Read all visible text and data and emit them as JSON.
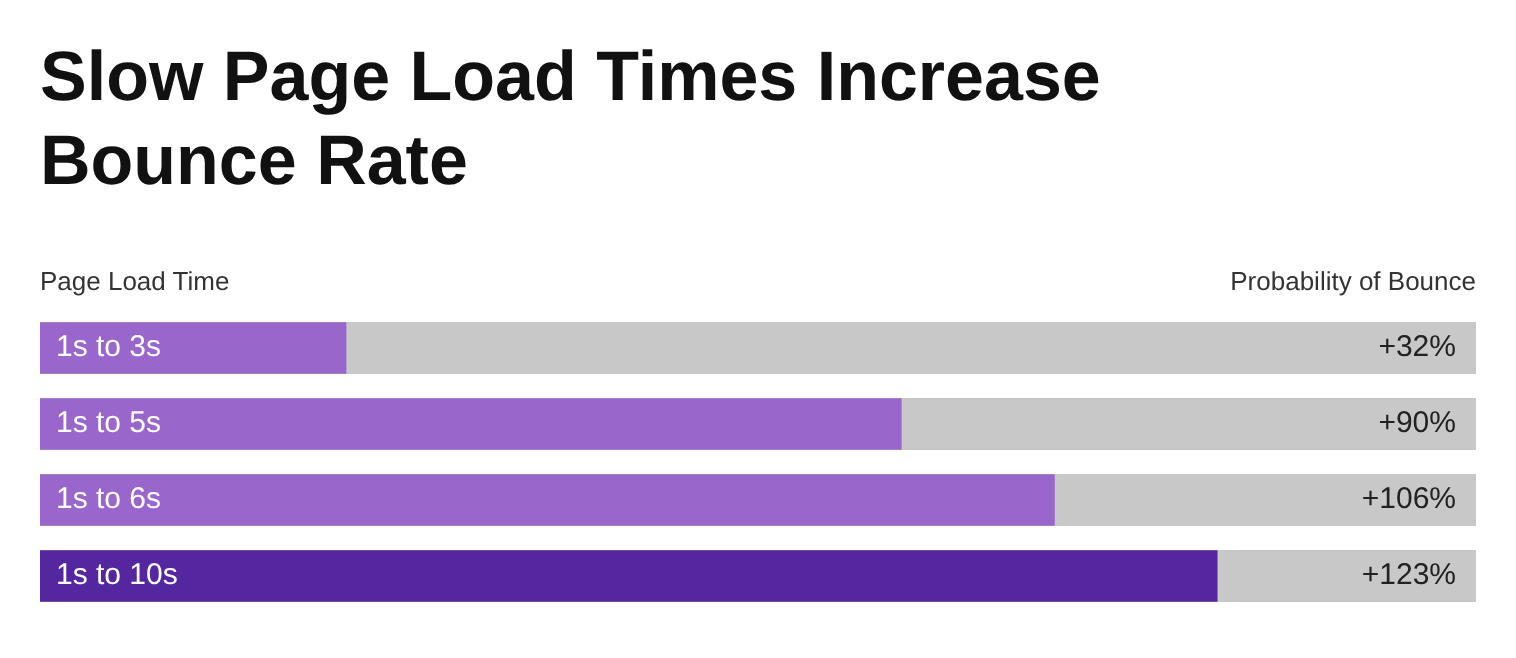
{
  "chart_data": {
    "type": "bar",
    "orientation": "horizontal",
    "title": "Slow Page Load Times Increase Bounce Rate",
    "ylabel": "Page Load Time",
    "xlabel": "Probability of Bounce",
    "categories": [
      "1s to 3s",
      "1s to 5s",
      "1s to 6s",
      "1s to 10s"
    ],
    "values": [
      32,
      90,
      106,
      123
    ],
    "colors": [
      "#9966cc",
      "#9966cc",
      "#9966cc",
      "#5427a0"
    ],
    "value_labels": [
      "+32%",
      "+90%",
      "+106%",
      "+123%"
    ],
    "xlim": [
      0,
      150
    ],
    "legend": false
  }
}
